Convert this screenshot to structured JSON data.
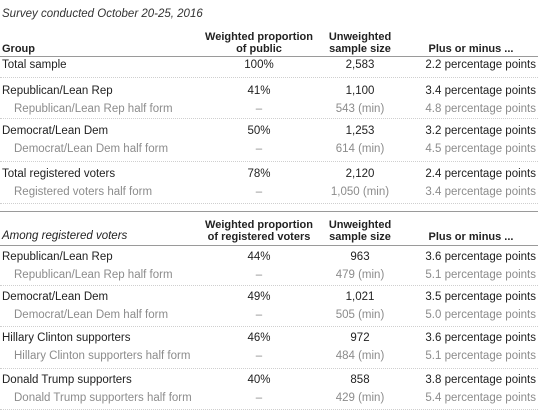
{
  "caption": "Survey conducted October 20-25, 2016",
  "section1": {
    "headers": {
      "group": "Group",
      "proportion": [
        "Weighted proportion",
        "of public"
      ],
      "sample": [
        "Unweighted",
        "sample size"
      ],
      "moe": "Plus or minus ..."
    },
    "rows": [
      {
        "label": "Total sample",
        "pct": "100%",
        "n": "2,583",
        "moe": "2.2 percentage points",
        "type": "main"
      },
      {
        "label": "Republican/Lean Rep",
        "pct": "41%",
        "n": "1,100",
        "moe": "3.4 percentage points",
        "type": "main"
      },
      {
        "label": "Republican/Lean Rep half form",
        "pct": "–",
        "n": "543 (min)",
        "moe": "4.8 percentage points",
        "type": "sub"
      },
      {
        "label": "Democrat/Lean Dem",
        "pct": "50%",
        "n": "1,253",
        "moe": "3.2 percentage points",
        "type": "main"
      },
      {
        "label": "Democrat/Lean Dem half form",
        "pct": "–",
        "n": "614 (min)",
        "moe": "4.5 percentage points",
        "type": "sub"
      },
      {
        "label": "Total registered voters",
        "pct": "78%",
        "n": "2,120",
        "moe": "2.4 percentage points",
        "type": "main"
      },
      {
        "label": "Registered voters half form",
        "pct": "–",
        "n": "1,050 (min)",
        "moe": "3.4 percentage points",
        "type": "sub"
      }
    ]
  },
  "section2": {
    "headers": {
      "group": "Among registered voters",
      "proportion": [
        "Weighted proportion",
        "of registered voters"
      ],
      "sample": [
        "Unweighted",
        "sample size"
      ],
      "moe": "Plus or minus ..."
    },
    "rows": [
      {
        "label": "Republican/Lean Rep",
        "pct": "44%",
        "n": "963",
        "moe": "3.6 percentage points",
        "type": "main"
      },
      {
        "label": "Republican/Lean Rep half form",
        "pct": "–",
        "n": "479 (min)",
        "moe": "5.1 percentage points",
        "type": "sub"
      },
      {
        "label": "Democrat/Lean Dem",
        "pct": "49%",
        "n": "1,021",
        "moe": "3.5 percentage points",
        "type": "main"
      },
      {
        "label": "Democrat/Lean Dem half form",
        "pct": "–",
        "n": "505 (min)",
        "moe": "5.0 percentage points",
        "type": "sub"
      },
      {
        "label": "Hillary Clinton supporters",
        "pct": "46%",
        "n": "972",
        "moe": "3.6 percentage points",
        "type": "main"
      },
      {
        "label": "Hillary Clinton supporters half form",
        "pct": "–",
        "n": "484 (min)",
        "moe": "5.1 percentage points",
        "type": "sub"
      },
      {
        "label": "Donald Trump supporters",
        "pct": "40%",
        "n": "858",
        "moe": "3.8 percentage points",
        "type": "main"
      },
      {
        "label": "Donald Trump supporters half form",
        "pct": "–",
        "n": "429 (min)",
        "moe": "5.4 percentage points",
        "type": "sub"
      }
    ]
  }
}
